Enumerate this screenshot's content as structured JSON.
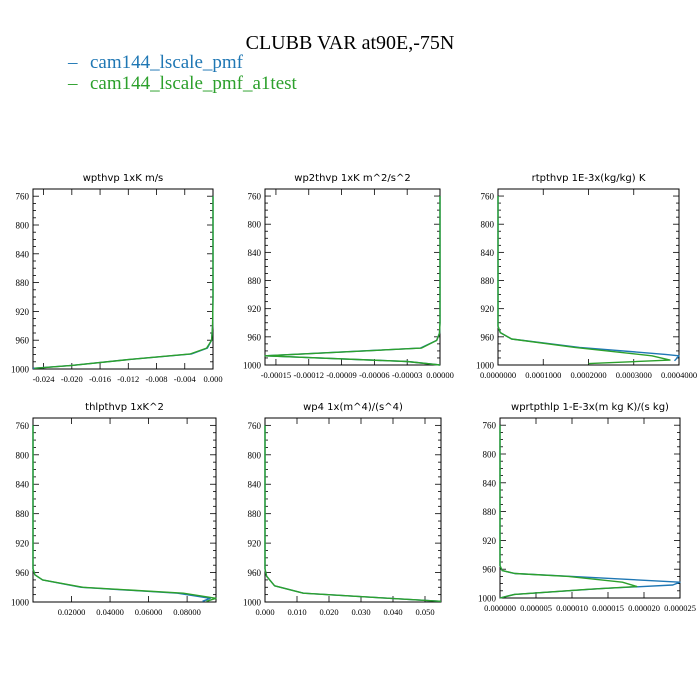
{
  "title": "CLUBB VAR at90E,-75N",
  "legend": [
    {
      "name": "cam144_lscale_pmf",
      "color": "#1f77b4"
    },
    {
      "name": "cam144_lscale_pmf_a1test",
      "color": "#2ca02c"
    }
  ],
  "chart_data": [
    {
      "type": "line",
      "title": "wpthvp  1xK m/s",
      "xlim": [
        -0.0255,
        0.0
      ],
      "ylim": [
        1000,
        750
      ],
      "yticks": [
        "760",
        "800",
        "840",
        "880",
        "920",
        "960",
        "1000"
      ],
      "xticks": [
        {
          "v": -0.024,
          "t": "-0.024"
        },
        {
          "v": -0.02,
          "t": "-0.020"
        },
        {
          "v": -0.016,
          "t": "-0.016"
        },
        {
          "v": -0.012,
          "t": "-0.012"
        },
        {
          "v": -0.008,
          "t": "-0.008"
        },
        {
          "v": -0.004,
          "t": "-0.004"
        },
        {
          "v": 0.0,
          "t": "0.000"
        }
      ],
      "series": [
        {
          "name": "cam144_lscale_pmf",
          "points": [
            [
              -0.0255,
              999
            ],
            [
              -0.02,
              995
            ],
            [
              -0.012,
              987
            ],
            [
              -0.003,
              979
            ],
            [
              -0.0008,
              971
            ],
            [
              -0.0002,
              960
            ],
            [
              -5e-05,
              940
            ],
            [
              0.0,
              900
            ],
            [
              0.0,
              760
            ]
          ]
        },
        {
          "name": "cam144_lscale_pmf_a1test",
          "points": [
            [
              -0.0253,
              999
            ],
            [
              -0.02,
              995
            ],
            [
              -0.012,
              987
            ],
            [
              -0.0032,
              979
            ],
            [
              -0.0009,
              971
            ],
            [
              -0.0002,
              960
            ],
            [
              -5e-05,
              940
            ],
            [
              0.0,
              900
            ],
            [
              0.0,
              760
            ]
          ]
        }
      ]
    },
    {
      "type": "line",
      "title": "wp2thvp  1xK m^2/s^2",
      "xlim": [
        -0.00016,
        0.0
      ],
      "ylim": [
        1000,
        750
      ],
      "yticks": [
        "760",
        "800",
        "840",
        "880",
        "920",
        "960",
        "1000"
      ],
      "xticks": [
        {
          "v": -0.00015,
          "t": "-0.00015"
        },
        {
          "v": -0.00012,
          "t": "-0.00012"
        },
        {
          "v": -9e-05,
          "t": "-0.00009"
        },
        {
          "v": -6e-05,
          "t": "-0.00006"
        },
        {
          "v": -3e-05,
          "t": "-0.00003"
        },
        {
          "v": 0.0,
          "t": "0.00000"
        }
      ],
      "series": [
        {
          "name": "cam144_lscale_pmf",
          "points": [
            [
              0.0,
              1000
            ],
            [
              -3e-05,
              995
            ],
            [
              -0.00016,
              987
            ],
            [
              -1.8e-05,
              976
            ],
            [
              -3e-06,
              965
            ],
            [
              -5e-07,
              955
            ],
            [
              0.0,
              940
            ],
            [
              0.0,
              760
            ]
          ]
        },
        {
          "name": "cam144_lscale_pmf_a1test",
          "points": [
            [
              0.0,
              1000
            ],
            [
              -3e-05,
              995
            ],
            [
              -0.00016,
              987
            ],
            [
              -1.7e-05,
              976
            ],
            [
              -3e-06,
              965
            ],
            [
              -5e-07,
              955
            ],
            [
              0.0,
              940
            ],
            [
              0.0,
              760
            ]
          ]
        }
      ]
    },
    {
      "type": "line",
      "title": "rtpthvp  1E-3x(kg/kg) K",
      "xlim": [
        0.0,
        0.0004
      ],
      "ylim": [
        1000,
        750
      ],
      "yticks": [
        "760",
        "800",
        "840",
        "880",
        "920",
        "960",
        "1000"
      ],
      "xticks": [
        {
          "v": 0.0,
          "t": "0.0000000"
        },
        {
          "v": 0.0001,
          "t": "0.0001000"
        },
        {
          "v": 0.0002,
          "t": "0.0002000"
        },
        {
          "v": 0.0003,
          "t": "0.0003000"
        },
        {
          "v": 0.0004,
          "t": "0.0004000"
        }
      ],
      "series": [
        {
          "name": "cam144_lscale_pmf",
          "points": [
            [
              0.0,
              760
            ],
            [
              0.0,
              945
            ],
            [
              5e-06,
              954
            ],
            [
              3e-05,
              963
            ],
            [
              0.00018,
              975
            ],
            [
              0.00037,
              985
            ],
            [
              0.0004,
              987
            ],
            [
              0.00039,
              994
            ]
          ]
        },
        {
          "name": "cam144_lscale_pmf_a1test",
          "points": [
            [
              0.0,
              760
            ],
            [
              0.0,
              945
            ],
            [
              5e-06,
              954
            ],
            [
              3e-05,
              963
            ],
            [
              0.00017,
              975
            ],
            [
              0.00034,
              987
            ],
            [
              0.00038,
              993
            ],
            [
              0.0002,
              998
            ]
          ]
        }
      ]
    },
    {
      "type": "line",
      "title": "thlpthvp  1xK^2",
      "xlim": [
        0.0,
        0.095
      ],
      "ylim": [
        1000,
        750
      ],
      "yticks": [
        "760",
        "800",
        "840",
        "880",
        "920",
        "960",
        "1000"
      ],
      "xticks": [
        {
          "v": 0.02,
          "t": "0.02000"
        },
        {
          "v": 0.04,
          "t": "0.04000"
        },
        {
          "v": 0.06,
          "t": "0.06000"
        },
        {
          "v": 0.08,
          "t": "0.08000"
        }
      ],
      "series": [
        {
          "name": "cam144_lscale_pmf",
          "points": [
            [
              0.0,
              760
            ],
            [
              0.0,
              955
            ],
            [
              0.001,
              963
            ],
            [
              0.005,
              970
            ],
            [
              0.025,
              980
            ],
            [
              0.075,
              988
            ],
            [
              0.092,
              995
            ],
            [
              0.088,
              999
            ]
          ]
        },
        {
          "name": "cam144_lscale_pmf_a1test",
          "points": [
            [
              0.0,
              760
            ],
            [
              0.0,
              955
            ],
            [
              0.001,
              963
            ],
            [
              0.005,
              970
            ],
            [
              0.026,
              980
            ],
            [
              0.078,
              988
            ],
            [
              0.095,
              995
            ],
            [
              0.09,
              999
            ]
          ]
        }
      ]
    },
    {
      "type": "line",
      "title": "wp4  1x(m^4)/(s^4)",
      "xlim": [
        0.0,
        0.055
      ],
      "ylim": [
        1000,
        750
      ],
      "yticks": [
        "760",
        "800",
        "840",
        "880",
        "920",
        "960",
        "1000"
      ],
      "xticks": [
        {
          "v": 0.0,
          "t": "0.000"
        },
        {
          "v": 0.01,
          "t": "0.010"
        },
        {
          "v": 0.02,
          "t": "0.020"
        },
        {
          "v": 0.03,
          "t": "0.030"
        },
        {
          "v": 0.04,
          "t": "0.040"
        },
        {
          "v": 0.05,
          "t": "0.050"
        }
      ],
      "series": [
        {
          "name": "cam144_lscale_pmf",
          "points": [
            [
              0.0,
              760
            ],
            [
              0.0,
              955
            ],
            [
              0.0005,
              965
            ],
            [
              0.003,
              978
            ],
            [
              0.012,
              988
            ],
            [
              0.035,
              994
            ],
            [
              0.055,
              999
            ]
          ]
        },
        {
          "name": "cam144_lscale_pmf_a1test",
          "points": [
            [
              0.0,
              760
            ],
            [
              0.0,
              955
            ],
            [
              0.0005,
              965
            ],
            [
              0.003,
              978
            ],
            [
              0.012,
              988
            ],
            [
              0.035,
              994
            ],
            [
              0.055,
              999
            ]
          ]
        }
      ]
    },
    {
      "type": "line",
      "title": "wprtpthlp  1-E-3x(m kg K)/(s kg)",
      "xlim": [
        0.0,
        2.5e-05
      ],
      "ylim": [
        1000,
        750
      ],
      "yticks": [
        "760",
        "800",
        "840",
        "880",
        "920",
        "960",
        "1000"
      ],
      "xticks": [
        {
          "v": 0.0,
          "t": "0.000000"
        },
        {
          "v": 5e-06,
          "t": "0.000005"
        },
        {
          "v": 1e-05,
          "t": "0.000010"
        },
        {
          "v": 1.5e-05,
          "t": "0.000015"
        },
        {
          "v": 2e-05,
          "t": "0.000020"
        },
        {
          "v": 2.5e-05,
          "t": "0.000025"
        }
      ],
      "series": [
        {
          "name": "cam144_lscale_pmf",
          "points": [
            [
              0.0,
              760
            ],
            [
              0.0,
              955
            ],
            [
              3e-07,
              962
            ],
            [
              2e-06,
              966
            ],
            [
              1e-05,
              970
            ],
            [
              2.5e-05,
              978
            ],
            [
              2.4e-05,
              982
            ],
            [
              1.4e-05,
              987
            ],
            [
              2e-06,
              995
            ],
            [
              0.0,
              1000
            ]
          ]
        },
        {
          "name": "cam144_lscale_pmf_a1test",
          "points": [
            [
              0.0,
              760
            ],
            [
              0.0,
              955
            ],
            [
              3e-07,
              962
            ],
            [
              2.1e-06,
              966
            ],
            [
              9.5e-06,
              970
            ],
            [
              1.7e-05,
              978
            ],
            [
              1.9e-05,
              984
            ],
            [
              1.2e-05,
              988
            ],
            [
              2e-06,
              995
            ],
            [
              0.0,
              1000
            ]
          ]
        }
      ]
    }
  ]
}
